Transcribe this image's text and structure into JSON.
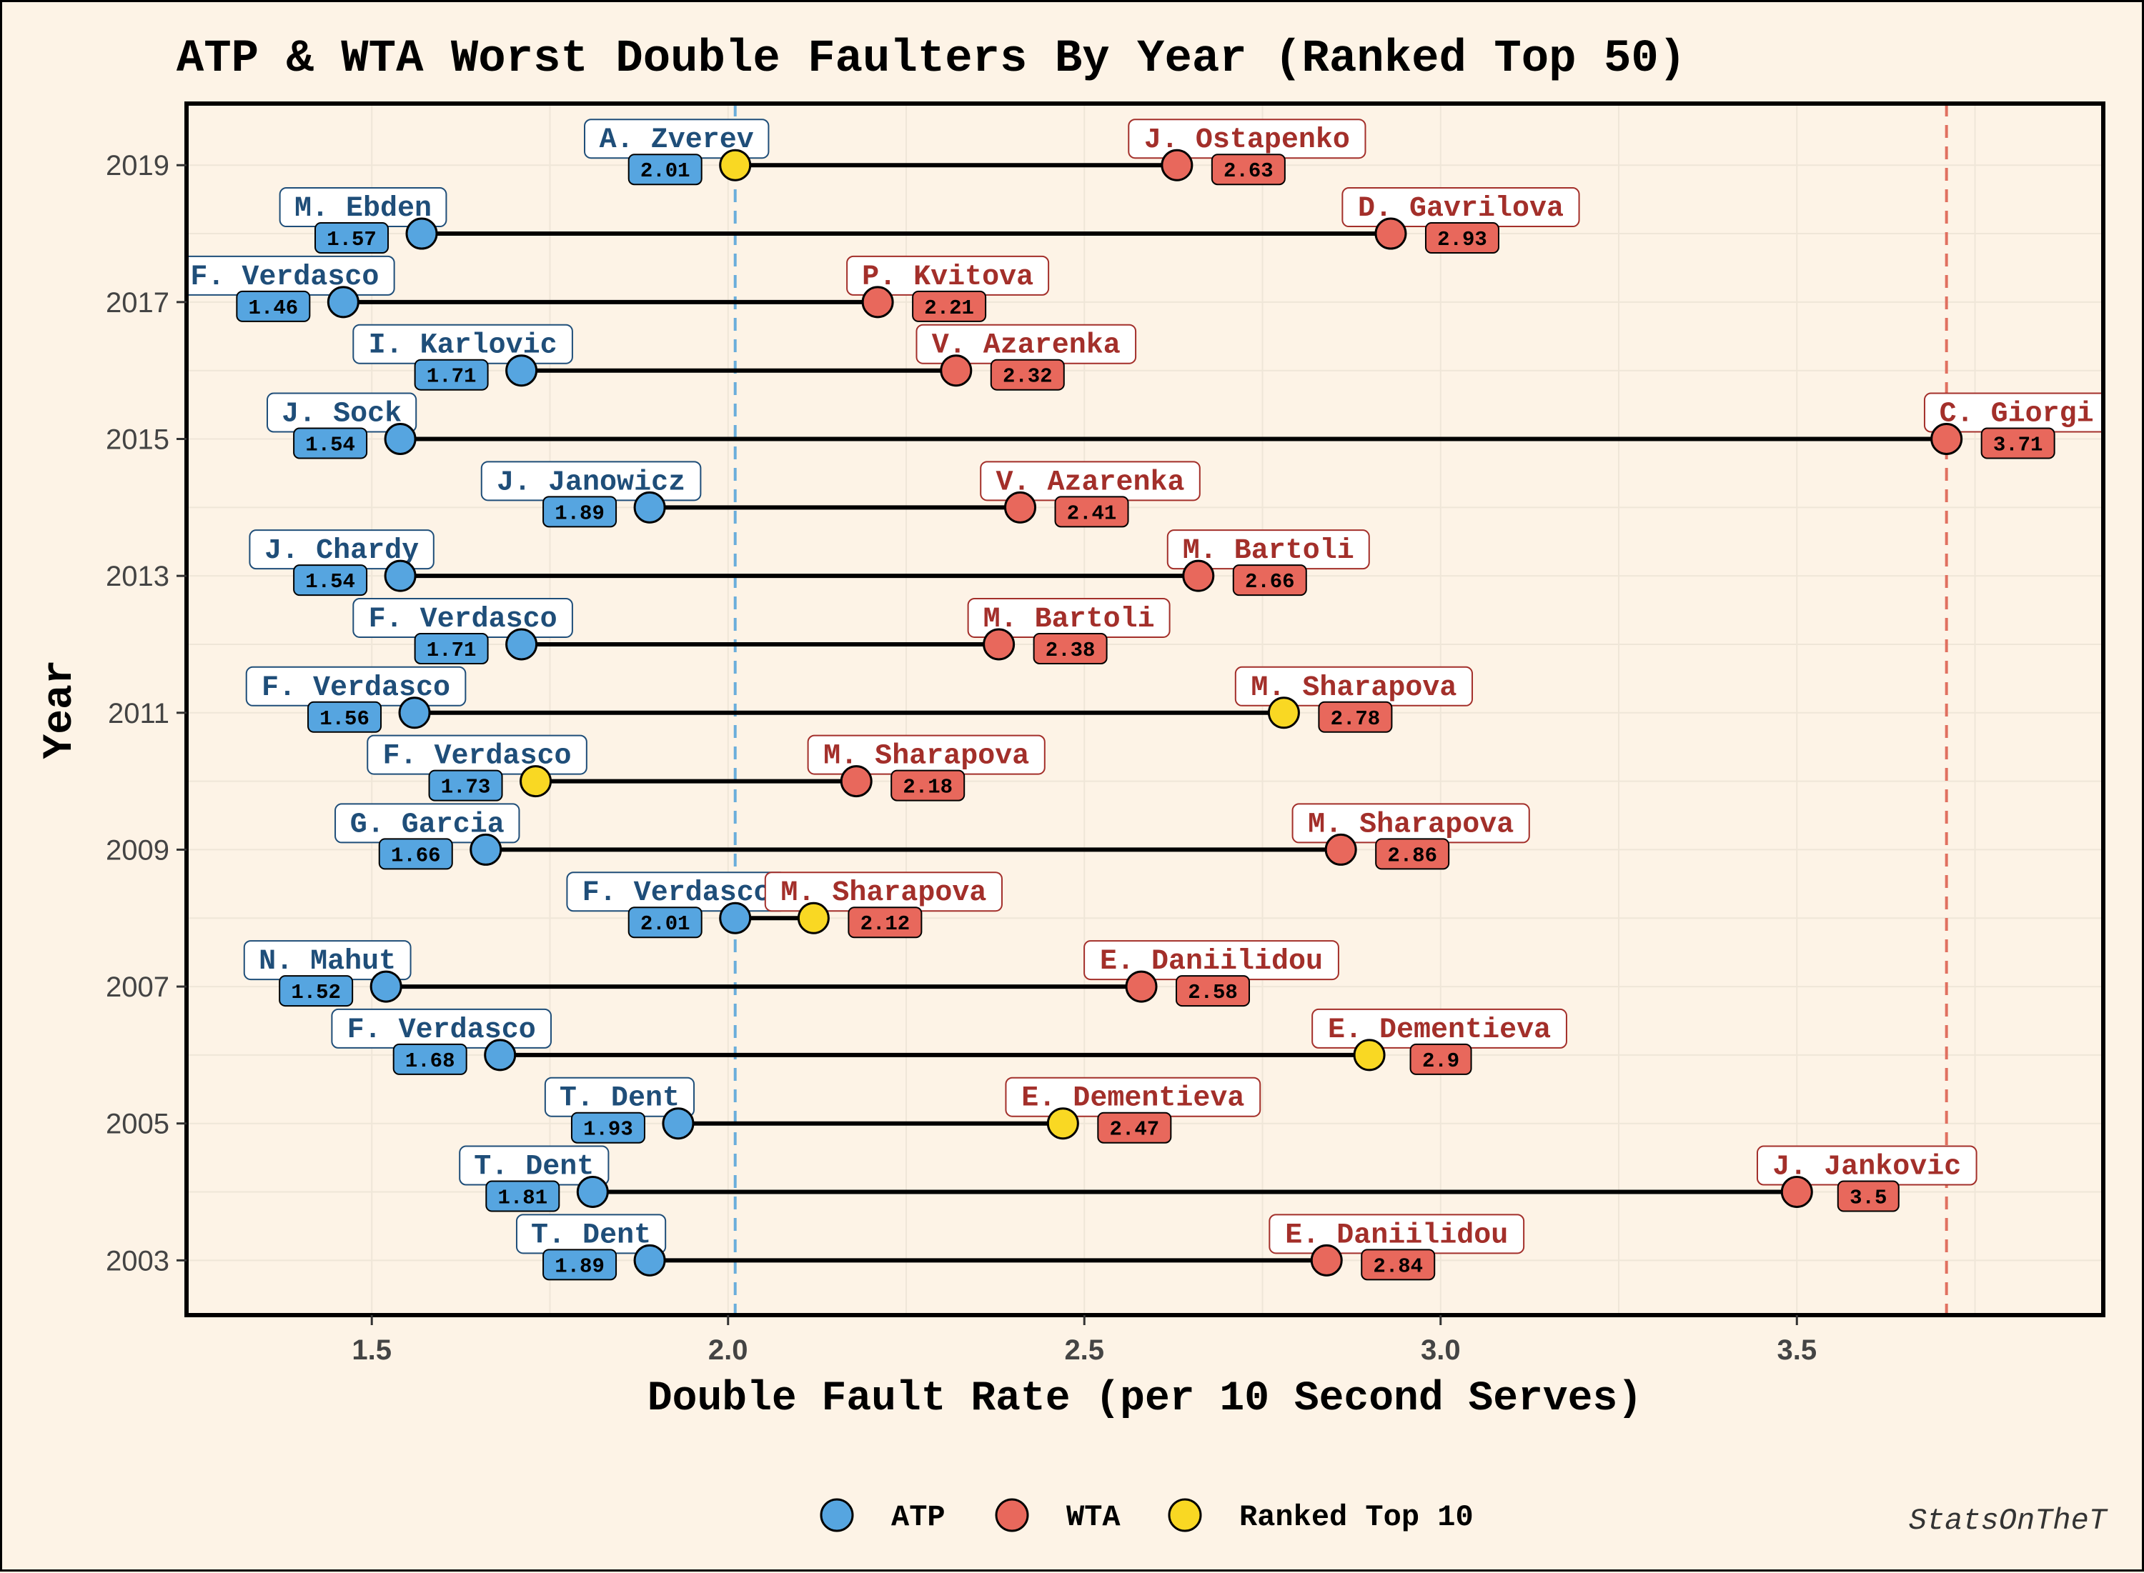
{
  "chart_data": {
    "type": "dumbbell",
    "title": "ATP & WTA Worst Double Faulters By Year (Ranked Top 50)",
    "xlabel": "Double Fault Rate (per 10 Second Serves)",
    "ylabel": "Year",
    "xlim": [
      1.24,
      3.93
    ],
    "ylim": [
      2002.2,
      2019.9
    ],
    "x_ticks": [
      "1.5",
      "2.0",
      "2.5",
      "3.0",
      "3.5"
    ],
    "y_ticks": [
      "2003",
      "2005",
      "2007",
      "2009",
      "2011",
      "2013",
      "2015",
      "2017",
      "2019"
    ],
    "reference_lines": [
      {
        "x": 2.01,
        "color": "#6aaedb"
      },
      {
        "x": 3.71,
        "color": "#e07060"
      }
    ],
    "legend": {
      "position": "bottom",
      "items": [
        {
          "label": "ATP",
          "color": "#56a5e0"
        },
        {
          "label": "WTA",
          "color": "#e8685c"
        },
        {
          "label": "Ranked Top 10",
          "color": "#f9d823"
        }
      ]
    },
    "colors": {
      "atp": "#56a5e0",
      "wta": "#e8685c",
      "top10": "#f9d823",
      "atp_text": "#1f4e79",
      "wta_text": "#a32f2a",
      "background": "#fdf3e6",
      "grid": "#efe6d8"
    },
    "caption": "StatsOnTheT",
    "series": [
      {
        "year": 2019,
        "atp": {
          "name": "A. Zverev",
          "value": 2.01,
          "top10": true
        },
        "wta": {
          "name": "J. Ostapenko",
          "value": 2.63,
          "top10": false
        }
      },
      {
        "year": 2018,
        "atp": {
          "name": "M. Ebden",
          "value": 1.57,
          "top10": false
        },
        "wta": {
          "name": "D. Gavrilova",
          "value": 2.93,
          "top10": false
        }
      },
      {
        "year": 2017,
        "atp": {
          "name": "F. Verdasco",
          "value": 1.46,
          "top10": false
        },
        "wta": {
          "name": "P. Kvitova",
          "value": 2.21,
          "top10": false
        }
      },
      {
        "year": 2016,
        "atp": {
          "name": "I. Karlovic",
          "value": 1.71,
          "top10": false
        },
        "wta": {
          "name": "V. Azarenka",
          "value": 2.32,
          "top10": false
        }
      },
      {
        "year": 2015,
        "atp": {
          "name": "J. Sock",
          "value": 1.54,
          "top10": false
        },
        "wta": {
          "name": "C. Giorgi",
          "value": 3.71,
          "top10": false
        }
      },
      {
        "year": 2014,
        "atp": {
          "name": "J. Janowicz",
          "value": 1.89,
          "top10": false
        },
        "wta": {
          "name": "V. Azarenka",
          "value": 2.41,
          "top10": false
        }
      },
      {
        "year": 2013,
        "atp": {
          "name": "J. Chardy",
          "value": 1.54,
          "top10": false
        },
        "wta": {
          "name": "M. Bartoli",
          "value": 2.66,
          "top10": false
        }
      },
      {
        "year": 2012,
        "atp": {
          "name": "F. Verdasco",
          "value": 1.71,
          "top10": false
        },
        "wta": {
          "name": "M. Bartoli",
          "value": 2.38,
          "top10": false
        }
      },
      {
        "year": 2011,
        "atp": {
          "name": "F. Verdasco",
          "value": 1.56,
          "top10": false
        },
        "wta": {
          "name": "M. Sharapova",
          "value": 2.78,
          "top10": true
        }
      },
      {
        "year": 2010,
        "atp": {
          "name": "F. Verdasco",
          "value": 1.73,
          "top10": true
        },
        "wta": {
          "name": "M. Sharapova",
          "value": 2.18,
          "top10": false
        }
      },
      {
        "year": 2009,
        "atp": {
          "name": "G. Garcia",
          "value": 1.66,
          "top10": false
        },
        "wta": {
          "name": "M. Sharapova",
          "value": 2.86,
          "top10": false
        }
      },
      {
        "year": 2008,
        "atp": {
          "name": "F. Verdasco",
          "value": 2.01,
          "top10": false
        },
        "wta": {
          "name": "M. Sharapova",
          "value": 2.12,
          "top10": true
        }
      },
      {
        "year": 2007,
        "atp": {
          "name": "N. Mahut",
          "value": 1.52,
          "top10": false
        },
        "wta": {
          "name": "E. Daniilidou",
          "value": 2.58,
          "top10": false
        }
      },
      {
        "year": 2006,
        "atp": {
          "name": "F. Verdasco",
          "value": 1.68,
          "top10": false
        },
        "wta": {
          "name": "E. Dementieva",
          "value": 2.9,
          "top10": true
        }
      },
      {
        "year": 2005,
        "atp": {
          "name": "T. Dent",
          "value": 1.93,
          "top10": false
        },
        "wta": {
          "name": "E. Dementieva",
          "value": 2.47,
          "top10": true
        }
      },
      {
        "year": 2004,
        "atp": {
          "name": "T. Dent",
          "value": 1.81,
          "top10": false
        },
        "wta": {
          "name": "J. Jankovic",
          "value": 3.5,
          "top10": false
        }
      },
      {
        "year": 2003,
        "atp": {
          "name": "T. Dent",
          "value": 1.89,
          "top10": false
        },
        "wta": {
          "name": "E. Daniilidou",
          "value": 2.84,
          "top10": false
        }
      }
    ]
  }
}
